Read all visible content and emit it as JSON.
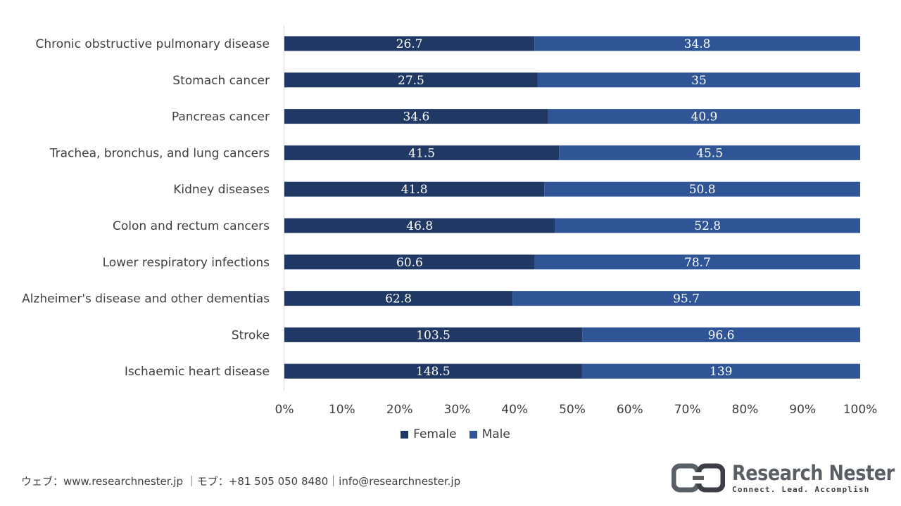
{
  "chart_data": {
    "type": "bar",
    "orientation": "horizontal",
    "stacking": "percent",
    "categories": [
      "Chronic obstructive pulmonary disease",
      "Stomach cancer",
      "Pancreas cancer",
      "Trachea, bronchus, and lung cancers",
      "Kidney diseases",
      "Colon and rectum cancers",
      "Lower respiratory infections",
      "Alzheimer's disease and other dementias",
      "Stroke",
      "Ischaemic heart disease"
    ],
    "series": [
      {
        "name": "Female",
        "color": "#203864",
        "values": [
          26.7,
          27.5,
          34.6,
          41.5,
          41.8,
          46.8,
          60.6,
          62.8,
          103.5,
          148.5
        ],
        "labels": [
          "26.7",
          "27.5",
          "34.6",
          "41.5",
          "41.8",
          "46.8",
          "60.6",
          "62.8",
          "103.5",
          "148.5"
        ]
      },
      {
        "name": "Male",
        "color": "#2f5597",
        "values": [
          34.8,
          35,
          40.9,
          45.5,
          50.8,
          52.8,
          78.7,
          95.7,
          96.6,
          139
        ],
        "labels": [
          "34.8",
          "35",
          "40.9",
          "45.5",
          "50.8",
          "52.8",
          "78.7",
          "95.7",
          "96.6",
          "139"
        ]
      }
    ],
    "x_ticks": [
      "0%",
      "10%",
      "20%",
      "30%",
      "40%",
      "50%",
      "60%",
      "70%",
      "80%",
      "90%",
      "100%"
    ],
    "xlim": [
      0,
      100
    ],
    "grid": false,
    "legend_position": "bottom"
  },
  "footer": {
    "contact": "ウェブ：www.researchnester.jp ｜モブ：+81 505 050 8480｜info@researchnester.jp"
  },
  "logo": {
    "name": "Research Nester",
    "tagline": "Connect. Lead. Accomplish",
    "colors": [
      "#5a5f66",
      "#3c4046"
    ]
  }
}
